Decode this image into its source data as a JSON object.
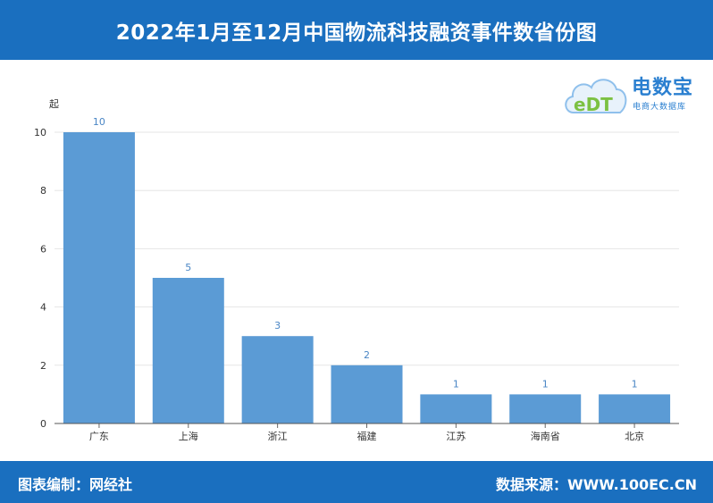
{
  "header": {
    "title": "2022年1月至12月中国物流科技融资事件数省份图"
  },
  "footer": {
    "left": "图表编制：网经社",
    "right": "数据来源：WWW.100EC.CN"
  },
  "logo": {
    "name": "电数宝",
    "subtitle": "电商大数据库",
    "mark": "eDT",
    "color": "#2a7fd0"
  },
  "colors": {
    "bar": "#5b9bd5",
    "header_bg": "#1a6fbf",
    "label": "#4a86c5"
  },
  "chart_data": {
    "type": "bar",
    "title": "2022年1月至12月中国物流科技融资事件数省份图",
    "ylabel": "起",
    "xlabel": "",
    "categories": [
      "广东",
      "上海",
      "浙江",
      "福建",
      "江苏",
      "海南省",
      "北京"
    ],
    "values": [
      10,
      5,
      3,
      2,
      1,
      1,
      1
    ],
    "ylim": [
      0,
      10
    ],
    "yticks": [
      0,
      2,
      4,
      6,
      8,
      10
    ],
    "grid": true,
    "data_labels": true
  }
}
